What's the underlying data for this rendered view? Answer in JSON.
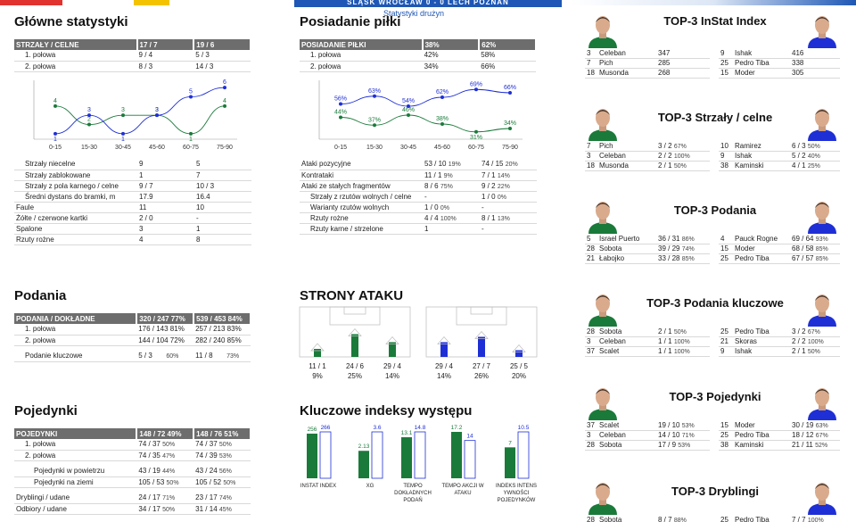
{
  "header": {
    "banner": "ŚLĄSK WROCŁAW 0 - 0 LECH POZNAŃ",
    "subtitle": "Statystyki drużyn"
  },
  "colors": {
    "home": "#1a7a3a",
    "away": "#1f2fd6",
    "header_bg": "#6d6d6d"
  },
  "main_stats": {
    "title": "Główne statystyki",
    "shots_header": [
      "STRZAŁY / CELNE",
      "17 / 7",
      "19 / 6"
    ],
    "shots_rows": [
      [
        "1. połowa",
        "9 / 4",
        "5 / 3"
      ],
      [
        "2. połowa",
        "8 / 3",
        "14 / 3"
      ]
    ],
    "rows": [
      [
        "Strzały niecelne",
        "9",
        "5"
      ],
      [
        "Strzały zablokowane",
        "1",
        "7"
      ],
      [
        "Strzały z pola karnego / celne",
        "9 / 7",
        "10 / 3"
      ],
      [
        "Średni dystans do bramki, m",
        "17.9",
        "16.4"
      ],
      [
        "Faule",
        "11",
        "10"
      ],
      [
        "Żółte / czerwone kartki",
        "2 / 0",
        "-"
      ],
      [
        "Spalone",
        "3",
        "1"
      ],
      [
        "Rzuty rożne",
        "4",
        "8"
      ]
    ]
  },
  "possession": {
    "title": "Posiadanie piłki",
    "header": [
      "POSIADANIE PIŁKI",
      "38%",
      "62%"
    ],
    "rows": [
      [
        "1. połowa",
        "42%",
        "58%"
      ],
      [
        "2. połowa",
        "34%",
        "66%"
      ]
    ],
    "attack_rows": [
      [
        "Ataki pozycyjne",
        "53 / 10",
        "19%",
        "74 / 15",
        "20%"
      ],
      [
        "Kontrataki",
        "11 / 1",
        "9%",
        "7 / 1",
        "14%"
      ],
      [
        "Ataki ze stałych fragmentów",
        "8 / 6",
        "75%",
        "9 / 2",
        "22%"
      ],
      [
        "Strzały z rzutów wolnych / celne",
        "-",
        "",
        "1 / 0",
        "0%"
      ],
      [
        "Warianty rzutów wolnych",
        "1 / 0",
        "0%",
        "-",
        ""
      ],
      [
        "Rzuty rożne",
        "4 / 4",
        "100%",
        "8 / 1",
        "13%"
      ],
      [
        "Rzuty karne / strzelone",
        "1",
        "",
        "-",
        ""
      ]
    ]
  },
  "chart_data": [
    {
      "type": "line",
      "x": [
        "0-15",
        "15-30",
        "30-45",
        "45-60",
        "60-75",
        "75-90"
      ],
      "series": [
        {
          "values": [
            4,
            2,
            3,
            3,
            1,
            4
          ]
        },
        {
          "values": [
            1,
            3,
            1,
            3,
            5,
            6
          ]
        }
      ]
    },
    {
      "type": "line",
      "x": [
        "0-15",
        "15-30",
        "30-45",
        "45-60",
        "60-75",
        "75-90"
      ],
      "series": [
        {
          "values": [
            44,
            37,
            46,
            38,
            31,
            34
          ]
        },
        {
          "values": [
            56,
            63,
            54,
            62,
            69,
            66
          ]
        }
      ]
    },
    {
      "type": "bar",
      "categories": [
        "INSTAT INDEX",
        "XG",
        "TEMPO DOKŁADNYCH PODAŃ",
        "TEMPO AKCJI W ATAKU",
        "INDEKS INTENSYWNOŚCI POJEDYNKÓW"
      ],
      "series": [
        {
          "values": [
            256,
            2.13,
            13.1,
            17.2,
            7
          ]
        },
        {
          "values": [
            266,
            3.6,
            14.8,
            14,
            10.5
          ]
        }
      ]
    }
  ],
  "line_labels": {
    "shots": {
      "home": [
        "4",
        "2",
        "3",
        "3",
        "1",
        "4"
      ],
      "away": [
        "1",
        "3",
        "1",
        "3",
        "5",
        "6"
      ]
    },
    "poss": {
      "home": [
        "44%",
        "37%",
        "46%",
        "38%",
        "31%",
        "34%"
      ],
      "away": [
        "56%",
        "63%",
        "54%",
        "62%",
        "69%",
        "66%"
      ]
    }
  },
  "passes": {
    "title": "Podania",
    "header": [
      "PODANIA / DOKŁADNE",
      "320 / 247 77%",
      "539 / 453 84%"
    ],
    "rows": [
      [
        "1. połowa",
        "176 / 143 81%",
        "257 / 213 83%"
      ],
      [
        "2. połowa",
        "144 / 104 72%",
        "282 / 240 85%"
      ]
    ],
    "key": [
      "Podanie kluczowe",
      "5 / 3",
      "60%",
      "11 / 8",
      "73%"
    ]
  },
  "attack_sides": {
    "title": "STRONY ATAKU",
    "home": [
      [
        "11 / 1",
        "9%"
      ],
      [
        "24 / 6",
        "25%"
      ],
      [
        "29 / 4",
        "14%"
      ]
    ],
    "away": [
      [
        "29 / 4",
        "14%"
      ],
      [
        "27 / 7",
        "26%"
      ],
      [
        "25 / 5",
        "20%"
      ]
    ],
    "home_bar_levels": [
      0.1,
      0.65,
      0.35
    ],
    "away_bar_levels": [
      0.35,
      0.55,
      0.05
    ]
  },
  "duels": {
    "title": "Pojedynki",
    "header": [
      "POJEDYNKI",
      "148 / 72 49%",
      "148 / 76 51%"
    ],
    "rows": [
      [
        "1. połowa",
        "74 / 37",
        "50%",
        "74 / 37",
        "50%"
      ],
      [
        "2. połowa",
        "74 / 35",
        "47%",
        "74 / 39",
        "53%"
      ]
    ],
    "rows2": [
      [
        "Pojedynki w powietrzu",
        "43 / 19",
        "44%",
        "43 / 24",
        "56%"
      ],
      [
        "Pojedynki na ziemi",
        "105 / 53",
        "50%",
        "105 / 52",
        "50%"
      ]
    ],
    "rows3": [
      [
        "Dryblingi / udane",
        "24 / 17",
        "71%",
        "23 / 17",
        "74%"
      ],
      [
        "Odbiory / udane",
        "34 / 17",
        "50%",
        "31 / 14",
        "45%"
      ]
    ]
  },
  "indices": {
    "title": "Kluczowe indeksy występu",
    "labels": [
      "INSTAT INDEX",
      "XG",
      "TEMPO DOKŁADNYCH PODAŃ",
      "TEMPO AKCJI W ATAKU",
      "INDEKS INTENS YWNOŚCI POJEDYNKÓW"
    ],
    "home_values": [
      "256",
      "2.13",
      "13.1",
      "17.2",
      "7"
    ],
    "away_values": [
      "266",
      "3.6",
      "14.8",
      "14",
      "10.5"
    ]
  },
  "top3": [
    {
      "title": "TOP-3 InStat Index",
      "rows": [
        [
          "3",
          "Celeban",
          "347",
          "",
          "9",
          "Ishak",
          "416",
          ""
        ],
        [
          "7",
          "Pich",
          "285",
          "",
          "25",
          "Pedro Tiba",
          "338",
          ""
        ],
        [
          "18",
          "Musonda",
          "268",
          "",
          "15",
          "Moder",
          "305",
          ""
        ]
      ]
    },
    {
      "title": "TOP-3 Strzały / celne",
      "rows": [
        [
          "7",
          "Pich",
          "3 / 2",
          "67%",
          "10",
          "Ramirez",
          "6 / 3",
          "50%"
        ],
        [
          "3",
          "Celeban",
          "2 / 2",
          "100%",
          "9",
          "Ishak",
          "5 / 2",
          "40%"
        ],
        [
          "18",
          "Musonda",
          "2 / 1",
          "50%",
          "38",
          "Kaminski",
          "4 / 1",
          "25%"
        ]
      ]
    },
    {
      "title": "TOP-3 Podania",
      "rows": [
        [
          "5",
          "Israel Puerto",
          "36 / 31",
          "86%",
          "4",
          "Pauck Rogne",
          "69 / 64",
          "93%"
        ],
        [
          "28",
          "Sobota",
          "39 / 29",
          "74%",
          "15",
          "Moder",
          "68 / 58",
          "85%"
        ],
        [
          "21",
          "Łabojko",
          "33 / 28",
          "85%",
          "25",
          "Pedro Tiba",
          "67 / 57",
          "85%"
        ]
      ]
    },
    {
      "title": "TOP-3 Podania kluczowe",
      "rows": [
        [
          "28",
          "Sobota",
          "2 / 1",
          "50%",
          "25",
          "Pedro Tiba",
          "3 / 2",
          "67%"
        ],
        [
          "3",
          "Celeban",
          "1 / 1",
          "100%",
          "21",
          "Skoras",
          "2 / 2",
          "100%"
        ],
        [
          "37",
          "Scalet",
          "1 / 1",
          "100%",
          "9",
          "Ishak",
          "2 / 1",
          "50%"
        ]
      ]
    },
    {
      "title": "TOP-3 Pojedynki",
      "rows": [
        [
          "37",
          "Scalet",
          "19 / 10",
          "53%",
          "15",
          "Moder",
          "30 / 19",
          "63%"
        ],
        [
          "3",
          "Celeban",
          "14 / 10",
          "71%",
          "25",
          "Pedro Tiba",
          "18 / 12",
          "67%"
        ],
        [
          "28",
          "Sobota",
          "17 / 9",
          "53%",
          "38",
          "Kaminski",
          "21 / 11",
          "52%"
        ]
      ]
    },
    {
      "title": "TOP-3 Dryblingi",
      "rows": [
        [
          "28",
          "Sobota",
          "8 / 7",
          "88%",
          "25",
          "Pedro Tiba",
          "7 / 7",
          "100%"
        ]
      ]
    }
  ]
}
